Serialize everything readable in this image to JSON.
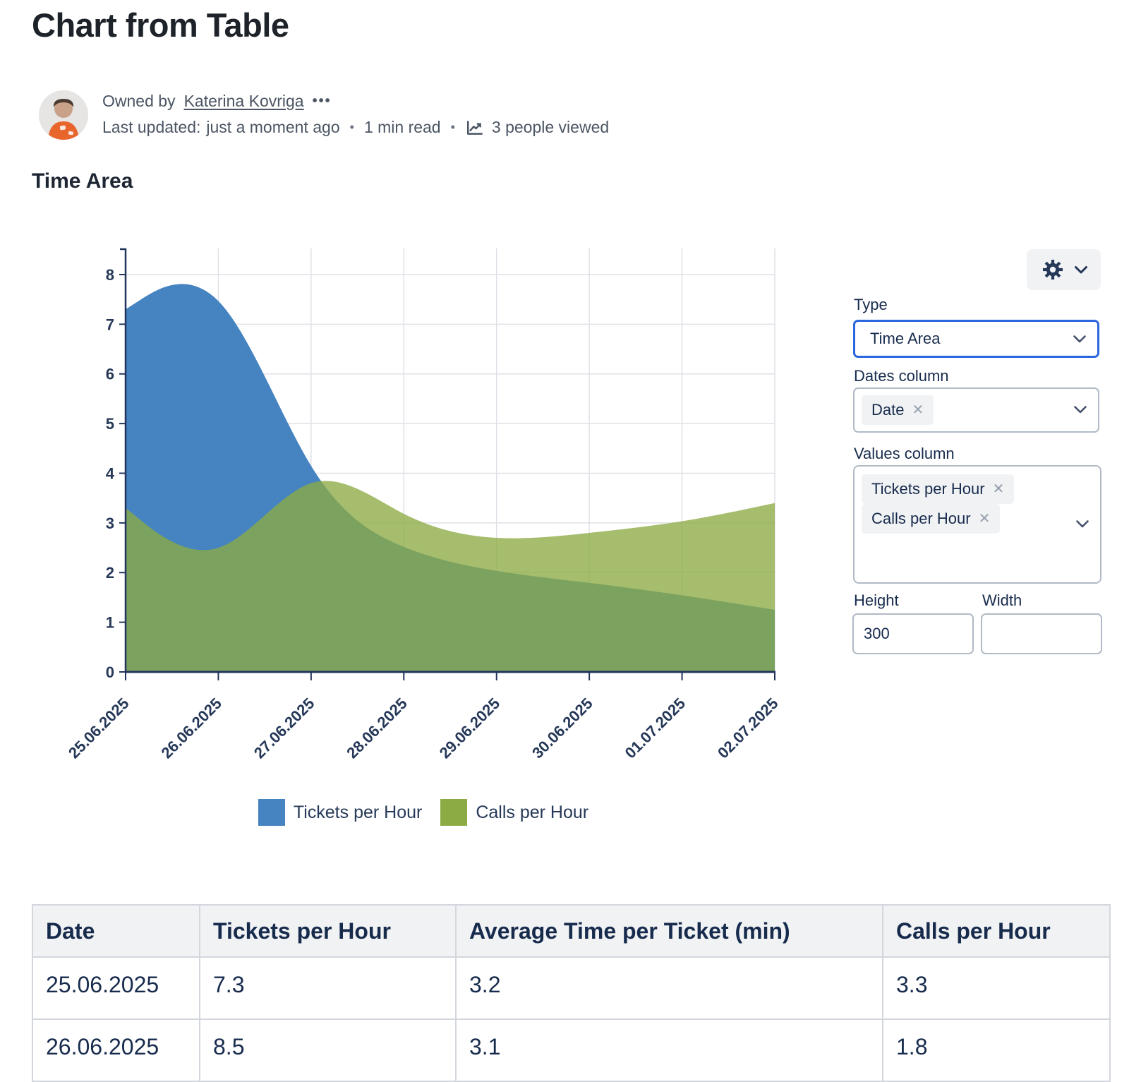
{
  "page": {
    "title": "Chart from Table"
  },
  "byline": {
    "owned_prefix": "Owned by",
    "owner": "Katerina Kovriga",
    "more_dots": "•••",
    "last_updated_label": "Last updated:",
    "last_updated_value": "just a moment ago",
    "dot": "•",
    "read_time": "1 min read",
    "views": "3 people viewed"
  },
  "section": {
    "heading": "Time Area"
  },
  "chart_data": {
    "type": "area",
    "title": "Time Area",
    "x": [
      "25.06.2025",
      "26.06.2025",
      "27.06.2025",
      "28.06.2025",
      "29.06.2025",
      "30.06.2025",
      "01.07.2025",
      "02.07.2025"
    ],
    "series": [
      {
        "name": "Tickets per Hour",
        "color": "#4583c1",
        "fill_opacity": 1,
        "values": [
          7.3,
          8.5,
          3.5,
          2.4,
          2.0,
          1.8,
          1.55,
          1.25
        ]
      },
      {
        "name": "Calls per Hour",
        "color": "#8cab44",
        "fill_opacity": 0.78,
        "values": [
          3.3,
          1.8,
          4.5,
          3.0,
          2.6,
          2.8,
          3.0,
          3.4
        ]
      }
    ],
    "ylim": [
      0,
      8
    ],
    "ytick_step": 1,
    "smoothing": "basis",
    "grid": true,
    "legend_position": "bottom",
    "axis_color": "#22345c",
    "grid_color": "#dfe1e6",
    "tick_label_color": "#253858"
  },
  "settings": {
    "type_label": "Type",
    "type_value": "Time Area",
    "dates_label": "Dates column",
    "dates_chip": "Date",
    "values_label": "Values column",
    "values_chips": [
      "Tickets per Hour",
      "Calls per Hour"
    ],
    "height_label": "Height",
    "height_value": "300",
    "width_label": "Width",
    "width_value": ""
  },
  "icons": {
    "remove": "✕"
  },
  "table": {
    "headers": [
      "Date",
      "Tickets per Hour",
      "Average Time per Ticket (min)",
      "Calls per Hour"
    ],
    "rows": [
      [
        "25.06.2025",
        "7.3",
        "3.2",
        "3.3"
      ],
      [
        "26.06.2025",
        "8.5",
        "3.1",
        "1.8"
      ]
    ]
  },
  "colors": {
    "accent_blue": "#2a66dd",
    "chip_bg": "#f1f2f4",
    "border_gray": "#b1bac6",
    "table_border": "#d3d7dd",
    "header_bg": "#f1f2f4",
    "text_navy": "#172b4d",
    "text_gray": "#4b5563"
  }
}
